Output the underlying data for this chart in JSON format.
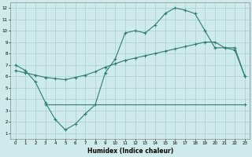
{
  "xlabel": "Humidex (Indice chaleur)",
  "bg_color": "#ceeaea",
  "line_color": "#2d7d6e",
  "grid_color": "#aed4d4",
  "xlim": [
    -0.5,
    23.5
  ],
  "ylim": [
    0.5,
    12.5
  ],
  "xticks": [
    0,
    1,
    2,
    3,
    4,
    5,
    6,
    7,
    8,
    9,
    10,
    11,
    12,
    13,
    14,
    15,
    16,
    17,
    18,
    19,
    20,
    21,
    22,
    23
  ],
  "yticks": [
    1,
    2,
    3,
    4,
    5,
    6,
    7,
    8,
    9,
    10,
    11,
    12
  ],
  "line1_x": [
    0,
    1,
    2,
    3,
    4,
    5,
    6,
    7,
    8,
    9,
    10,
    11,
    12,
    13,
    14,
    15,
    16,
    17,
    18,
    19,
    20,
    21,
    22,
    23
  ],
  "line1_y": [
    7.0,
    6.5,
    5.5,
    3.7,
    2.2,
    1.3,
    1.8,
    2.7,
    3.5,
    6.3,
    7.5,
    9.8,
    10.0,
    9.8,
    10.5,
    11.5,
    12.0,
    11.8,
    11.5,
    10.0,
    8.5,
    8.5,
    8.3,
    6.0
  ],
  "line2_x": [
    3,
    23
  ],
  "line2_y": [
    3.5,
    3.5
  ],
  "line3_x": [
    0,
    1,
    2,
    3,
    4,
    5,
    6,
    7,
    8,
    9,
    10,
    11,
    12,
    13,
    14,
    15,
    16,
    17,
    18,
    19,
    20,
    21,
    22,
    23
  ],
  "line3_y": [
    6.5,
    6.3,
    6.1,
    5.9,
    5.8,
    5.7,
    5.9,
    6.1,
    6.4,
    6.8,
    7.1,
    7.4,
    7.6,
    7.8,
    8.0,
    8.2,
    8.4,
    8.6,
    8.8,
    9.0,
    9.0,
    8.5,
    8.5,
    6.0
  ]
}
